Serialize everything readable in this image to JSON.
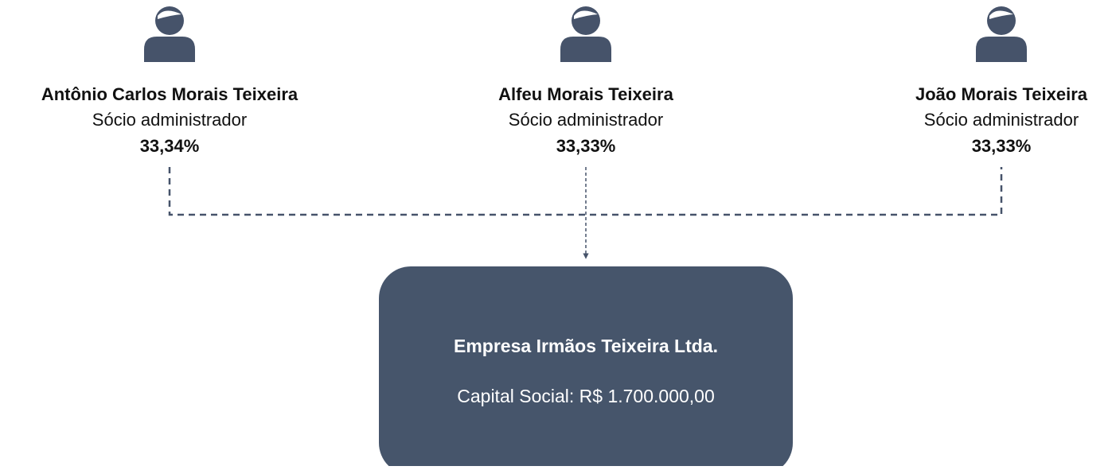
{
  "partners": [
    {
      "name": "Antônio Carlos Morais Teixeira",
      "role": "Sócio administrador",
      "share": "33,34%"
    },
    {
      "name": "Alfeu Morais Teixeira",
      "role": "Sócio administrador",
      "share": "33,33%"
    },
    {
      "name": "João Morais Teixeira",
      "role": "Sócio administrador",
      "share": "33,33%"
    }
  ],
  "company": {
    "name": "Empresa Irmãos Teixeira Ltda.",
    "capital": "Capital Social: R$ 1.700.000,00"
  }
}
